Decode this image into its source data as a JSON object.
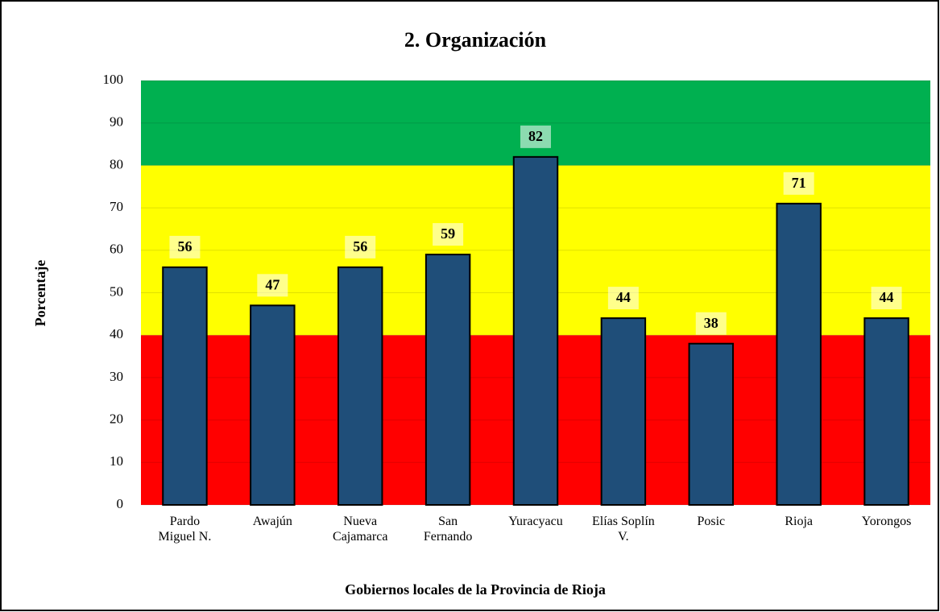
{
  "chart_data": {
    "type": "bar",
    "title": "2. Organización",
    "x_label": "Gobiernos locales de la Provincia de Rioja",
    "y_label": "Porcentaje",
    "categories": [
      "Pardo\nMiguel N.",
      "Awajún",
      "Nueva\nCajamarca",
      "San\nFernando",
      "Yuracyacu",
      "Elías Soplín\nV.",
      "Posic",
      "Rioja",
      "Yorongos"
    ],
    "values": [
      56,
      47,
      56,
      59,
      82,
      44,
      38,
      71,
      44
    ],
    "color": "#1f4e79",
    "ylim": [
      0,
      100
    ],
    "yticks": [
      0,
      10,
      20,
      30,
      40,
      50,
      60,
      70,
      80,
      90,
      100
    ],
    "bands": [
      {
        "from": 0,
        "to": 40,
        "color": "#ff0000"
      },
      {
        "from": 40,
        "to": 80,
        "color": "#ffff00"
      },
      {
        "from": 80,
        "to": 100,
        "color": "#00b050"
      }
    ]
  }
}
